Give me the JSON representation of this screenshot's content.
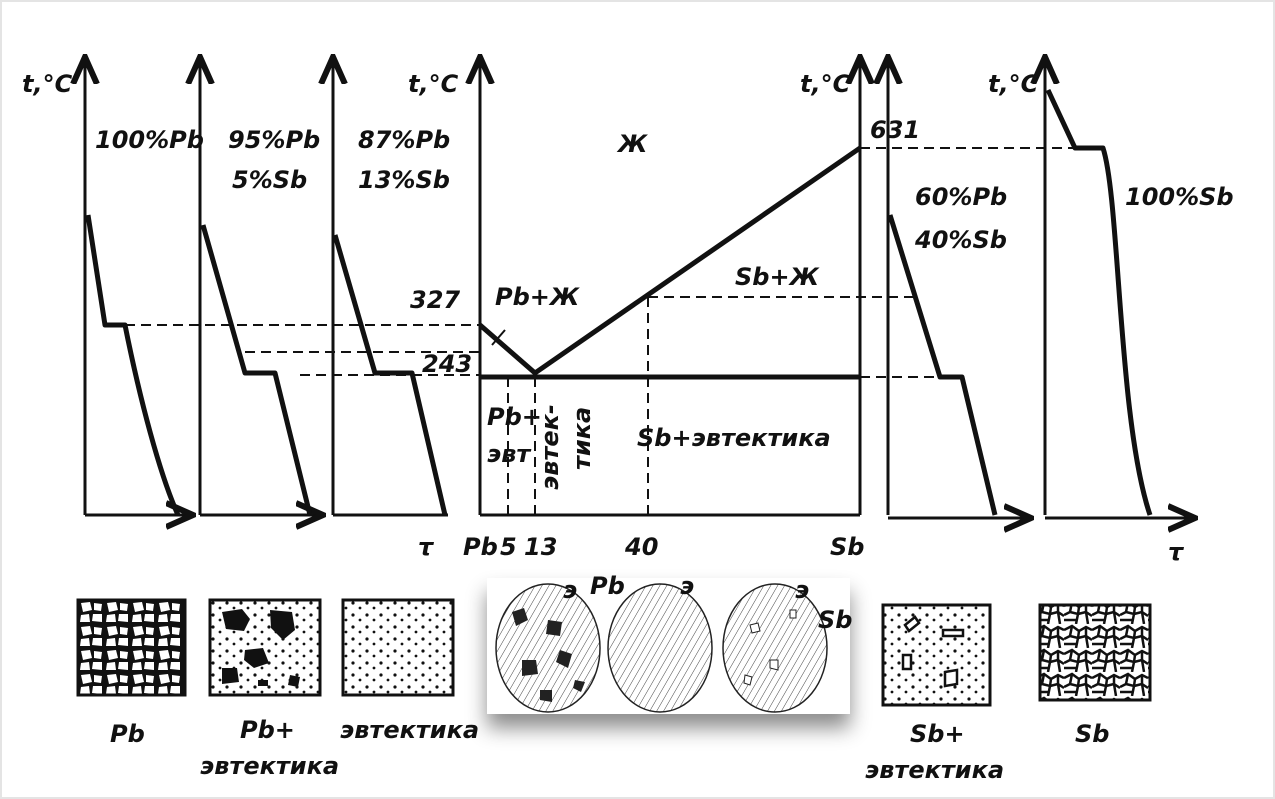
{
  "cooling_curves": [
    {
      "axis_label": "t,°C",
      "composition": [
        "100%Pb"
      ]
    },
    {
      "composition": [
        "95%Pb",
        "5%Sb"
      ]
    },
    {
      "composition": [
        "87%Pb",
        "13%Sb"
      ]
    },
    {
      "composition": [
        "60%Pb",
        "40%Sb"
      ]
    },
    {
      "axis_label": "t,°C",
      "composition": [
        "100%Sb"
      ]
    }
  ],
  "phase_diagram": {
    "left_axis_label": "t,°C",
    "right_axis_label": "t,°C",
    "time_label": "τ",
    "time_label_right": "τ",
    "regions": [
      "Ж",
      "Pb+Ж",
      "Sb+Ж",
      "Pb+",
      "эвт",
      "эвтек-",
      "тика",
      "Sb+эвтектика"
    ],
    "temperatures": [
      "327",
      "243",
      "631"
    ],
    "x_labels": [
      "Pb",
      "5",
      "13",
      "40",
      "Sb"
    ]
  },
  "microstructures": [
    {
      "label": [
        "Pb"
      ]
    },
    {
      "label": [
        "Pb+",
        "эвтектика"
      ]
    },
    {
      "label": [
        "эвтектика"
      ]
    },
    {
      "label": [
        "Sb+",
        "эвтектика"
      ]
    },
    {
      "label": [
        "Sb"
      ]
    }
  ],
  "photo_labels": [
    "э",
    "Pb",
    "э",
    "э",
    "Sb"
  ]
}
